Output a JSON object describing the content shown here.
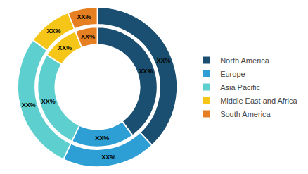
{
  "chart_data": {
    "type": "pie",
    "categories": [
      "North America",
      "Europe",
      "Asia Pacific",
      "Middle East and Africa",
      "South America"
    ],
    "colors": [
      "#1b4f72",
      "#2e9fd4",
      "#5dcfcf",
      "#f5c518",
      "#e67e22"
    ],
    "series": [
      {
        "values": [
          38,
          19,
          28,
          9,
          6
        ],
        "value_labels": [
          "XX%",
          "XX%",
          "XX%",
          "XX%",
          "XX%"
        ]
      },
      {
        "values": [
          40,
          17,
          27,
          10,
          6
        ],
        "value_labels": [
          "XX%",
          "XX%",
          "XX%",
          "XX%",
          "XX%"
        ]
      }
    ],
    "data_labels": true,
    "legend": "right"
  }
}
